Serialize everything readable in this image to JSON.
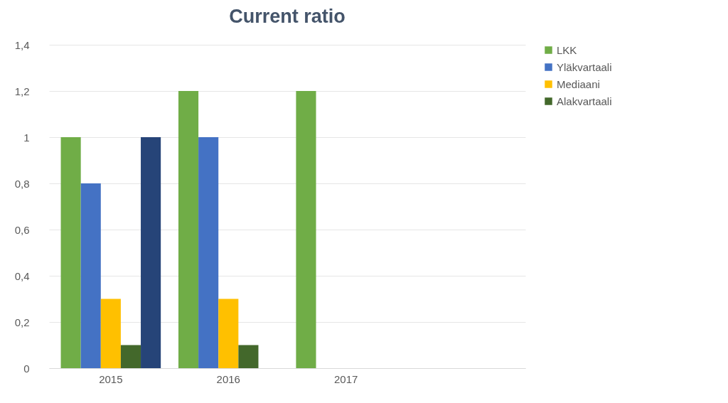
{
  "chart_data": {
    "type": "bar",
    "title": "Current ratio",
    "categories": [
      "2015",
      "2016",
      "2017",
      null
    ],
    "series": [
      {
        "name": "LKK",
        "color": "#70ad47",
        "values": [
          1,
          1.2,
          1.2,
          null
        ]
      },
      {
        "name": "Yläkvartaali",
        "color": "#4472c4",
        "values": [
          0.8,
          1,
          null,
          null
        ]
      },
      {
        "name": "Mediaani",
        "color": "#ffc000",
        "values": [
          0.3,
          0.3,
          null,
          null
        ]
      },
      {
        "name": "Alakvartaali",
        "color": "#43682b",
        "values": [
          0.1,
          0.1,
          null,
          null
        ]
      },
      {
        "color": "#264478",
        "values": [
          1,
          null,
          null,
          null
        ]
      }
    ],
    "ylim": [
      0,
      1.4
    ],
    "yticks": [
      0,
      {
        "value": 0.2,
        "label": "0,2"
      },
      {
        "value": 0.4,
        "label": "0,4"
      },
      {
        "value": 0.6,
        "label": "0,6"
      },
      {
        "value": 0.8,
        "label": "0,8"
      },
      1,
      {
        "value": 1.2,
        "label": "1,2"
      },
      {
        "value": 1.4,
        "label": "1,4"
      }
    ],
    "grid": "y",
    "legend": "right"
  }
}
